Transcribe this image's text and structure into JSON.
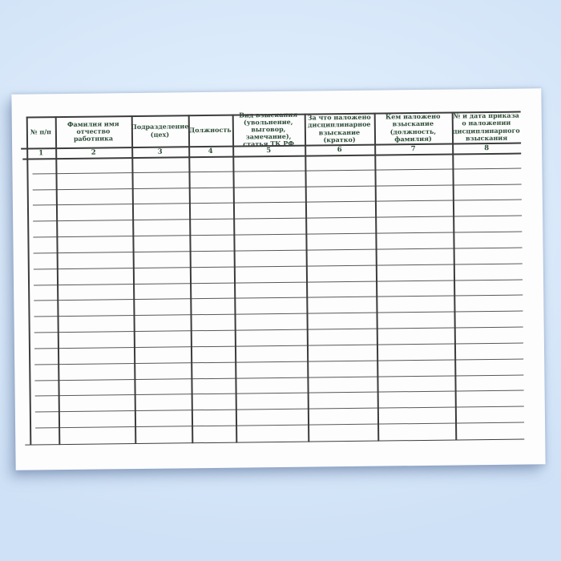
{
  "page": {
    "background_top_color": "#dcebfb",
    "background_edge_color": "#cfe1f6",
    "paper_color": "#fdfdfe"
  },
  "table": {
    "header_text_color": "#2c4b35",
    "line_color": "#3c3c3c",
    "empty_rows": 18,
    "columns": [
      {
        "num": "1",
        "header": "№ п/п"
      },
      {
        "num": "2",
        "header": "Фамилия имя отчество работника"
      },
      {
        "num": "3",
        "header": "Подразделение (цех)"
      },
      {
        "num": "4",
        "header": "Должность"
      },
      {
        "num": "5",
        "header": "Вид взыскания (увольнение, выговор, замечание), статья ТК РФ"
      },
      {
        "num": "6",
        "header": "За что наложено дисциплинарное взыскание (кратко)"
      },
      {
        "num": "7",
        "header": "Кем наложено взыскание (должность, фамилия)"
      },
      {
        "num": "8",
        "header": "№ и дата приказа о наложении дисциплинарного взыскания"
      }
    ]
  }
}
